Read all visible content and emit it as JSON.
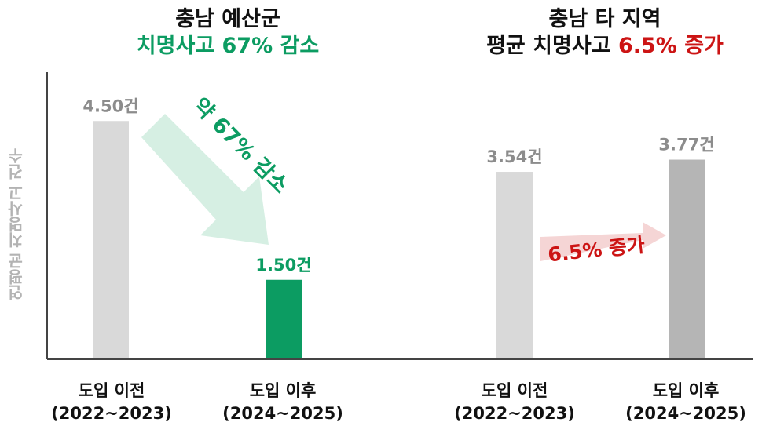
{
  "colors": {
    "bar_before": "#d9d9d9",
    "bar_after_left": "#0c9c62",
    "bar_after_right": "#b5b5b5",
    "value_gray": "#8c8c8c",
    "green": "#0c9c62",
    "red": "#cc1414",
    "axis": "#444444",
    "arrow_left_fill": "#d6efe3",
    "arrow_right_fill": "#f5d5d5"
  },
  "left_title": {
    "line1": "충남 예산군",
    "line2": "치명사고 67% 감소"
  },
  "right_title": {
    "line1": "충남 타 지역",
    "line2_prefix": "평균 치명사고 ",
    "line2_highlight": "6.5% 증가"
  },
  "annotations": {
    "left_change": "약 67% 감소",
    "right_change": "6.5% 증가"
  },
  "chart_data": {
    "type": "bar",
    "ylabel": "연평균 치명사고 건수",
    "unit": "건",
    "groups": [
      {
        "name": "충남 예산군",
        "bars": [
          {
            "line1": "도입 이전",
            "line2": "(2022~2023)",
            "value": 4.5,
            "value_label": "4.50건"
          },
          {
            "line1": "도입 이후",
            "line2": "(2024~2025)",
            "value": 1.5,
            "value_label": "1.50건"
          }
        ]
      },
      {
        "name": "충남 타 지역",
        "bars": [
          {
            "line1": "도입 이전",
            "line2": "(2022~2023)",
            "value": 3.54,
            "value_label": "3.54건"
          },
          {
            "line1": "도입 이후",
            "line2": "(2024~2025)",
            "value": 3.77,
            "value_label": "3.77건"
          }
        ]
      }
    ]
  }
}
